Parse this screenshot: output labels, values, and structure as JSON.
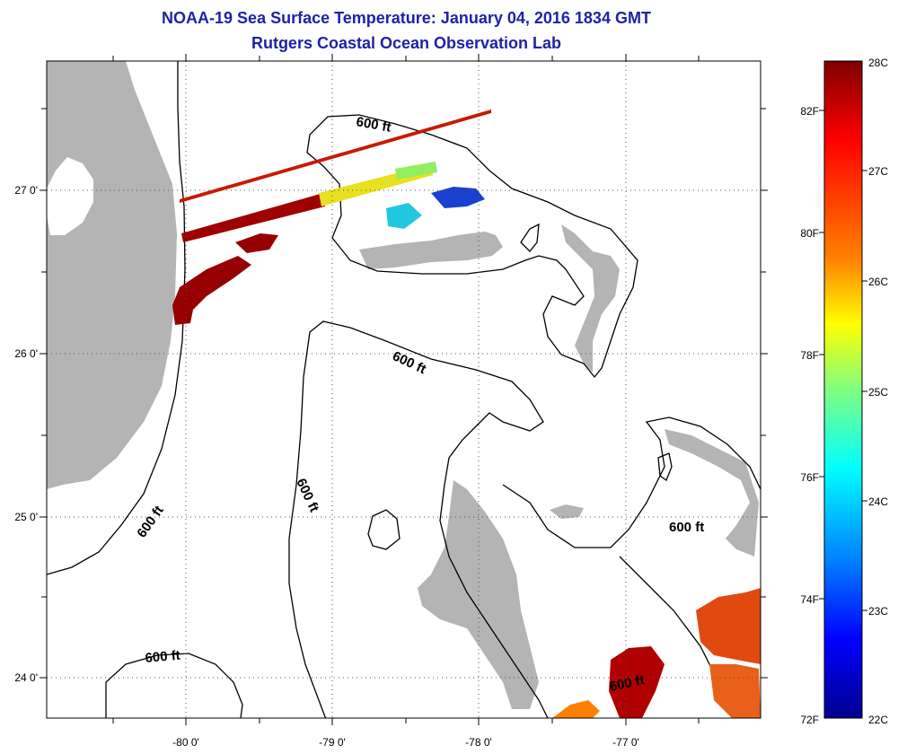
{
  "title": {
    "line1": "NOAA-19 Sea Surface Temperature:  January 04, 2016 1834 GMT",
    "line2": "Rutgers Coastal Ocean Observation Lab"
  },
  "map": {
    "lon_ticks": [
      "-80 0'",
      "-79 0'",
      "-78 0'",
      "-77 0'"
    ],
    "lat_ticks": [
      "27 0'",
      "26 0'",
      "25 0'",
      "24 0'"
    ],
    "contour_labels": [
      "600 ft",
      "600 ft",
      "600 ft",
      "600 ft",
      "600 ft",
      "600 ft",
      "600 ft"
    ],
    "colors": {
      "land": "#b4b4b4",
      "lake": "#ffffff",
      "contour": "#000000"
    }
  },
  "colorbar": {
    "celsius_labels": [
      "28C",
      "27C",
      "26C",
      "25C",
      "24C",
      "23C",
      "22C"
    ],
    "fahrenheit_labels": [
      "82F",
      "80F",
      "78F",
      "76F",
      "74F",
      "72F"
    ],
    "gradient_colors": [
      "#7f0000",
      "#ff0000",
      "#ff8000",
      "#ffff00",
      "#80ff80",
      "#00ffff",
      "#0080ff",
      "#0000ff",
      "#00008f"
    ]
  }
}
